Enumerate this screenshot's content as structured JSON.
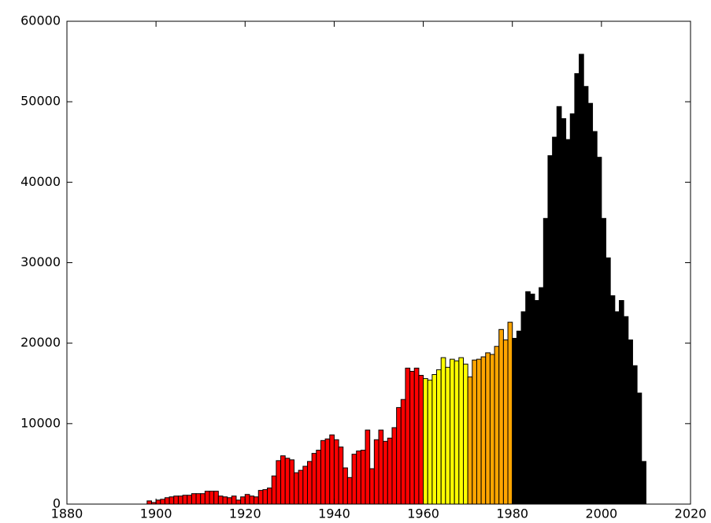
{
  "chart_data": {
    "type": "histogram",
    "xlim": [
      1880,
      2020
    ],
    "xticks": [
      1880,
      1900,
      1920,
      1940,
      1960,
      1980,
      2000,
      2020
    ],
    "ylim": [
      0,
      60000
    ],
    "yticks": [
      0,
      10000,
      20000,
      30000,
      40000,
      50000,
      60000
    ],
    "series": [
      {
        "color": "#ff0000",
        "bins": [
          1898,
          1899,
          1900,
          1901,
          1902,
          1903,
          1904,
          1905,
          1906,
          1907,
          1908,
          1909,
          1910,
          1911,
          1912,
          1913,
          1914,
          1915,
          1916,
          1917,
          1918,
          1919,
          1920,
          1921,
          1922,
          1923,
          1924,
          1925,
          1926,
          1927,
          1928,
          1929,
          1930,
          1931,
          1932,
          1933,
          1934,
          1935,
          1936,
          1937,
          1938,
          1939,
          1940,
          1941,
          1942,
          1943,
          1944,
          1945,
          1946,
          1947,
          1948,
          1949,
          1950,
          1951,
          1952,
          1953,
          1954,
          1955,
          1956,
          1957,
          1958,
          1959,
          1960
        ],
        "values": [
          400,
          200,
          500,
          600,
          800,
          900,
          1000,
          1000,
          1100,
          1100,
          1300,
          1300,
          1300,
          1600,
          1600,
          1600,
          1000,
          900,
          800,
          1000,
          500,
          900,
          1200,
          1000,
          900,
          1700,
          1800,
          2000,
          3500,
          5400,
          6000,
          5700,
          5500,
          3900,
          4200,
          4700,
          5300,
          6300,
          6700,
          7900,
          8100,
          8600,
          8000,
          7100,
          4500,
          3300,
          6200,
          6600,
          6700,
          9200,
          4400,
          8000,
          9200,
          7800,
          8200,
          9500,
          12000,
          13000,
          16900,
          16500,
          16900,
          16000
        ]
      },
      {
        "color": "#ffff00",
        "bins": [
          1960,
          1961,
          1962,
          1963,
          1964,
          1965,
          1966,
          1967,
          1968,
          1969,
          1970
        ],
        "values": [
          15600,
          15400,
          16100,
          16700,
          18200,
          17000,
          18000,
          17800,
          18200,
          17400
        ]
      },
      {
        "color": "#ffa500",
        "bins": [
          1970,
          1971,
          1972,
          1973,
          1974,
          1975,
          1976,
          1977,
          1978,
          1979,
          1980
        ],
        "values": [
          15800,
          17900,
          18000,
          18300,
          18800,
          18600,
          19600,
          21700,
          20400,
          22600
        ]
      },
      {
        "color": "#000000",
        "bins": [
          1980,
          1981,
          1982,
          1983,
          1984,
          1985,
          1986,
          1987,
          1988,
          1989,
          1990,
          1991,
          1992,
          1993,
          1994,
          1995,
          1996,
          1997,
          1998,
          1999,
          2000,
          2001,
          2002,
          2003,
          2004,
          2005,
          2006,
          2007,
          2008,
          2009,
          2010
        ],
        "values": [
          20600,
          21500,
          23900,
          26400,
          26100,
          25300,
          26900,
          35500,
          43300,
          45600,
          49400,
          47900,
          45300,
          48500,
          53500,
          55900,
          51900,
          49800,
          46300,
          43100,
          35500,
          30600,
          25900,
          23900,
          25300,
          23300,
          20400,
          17200,
          13800,
          5300
        ]
      }
    ]
  }
}
